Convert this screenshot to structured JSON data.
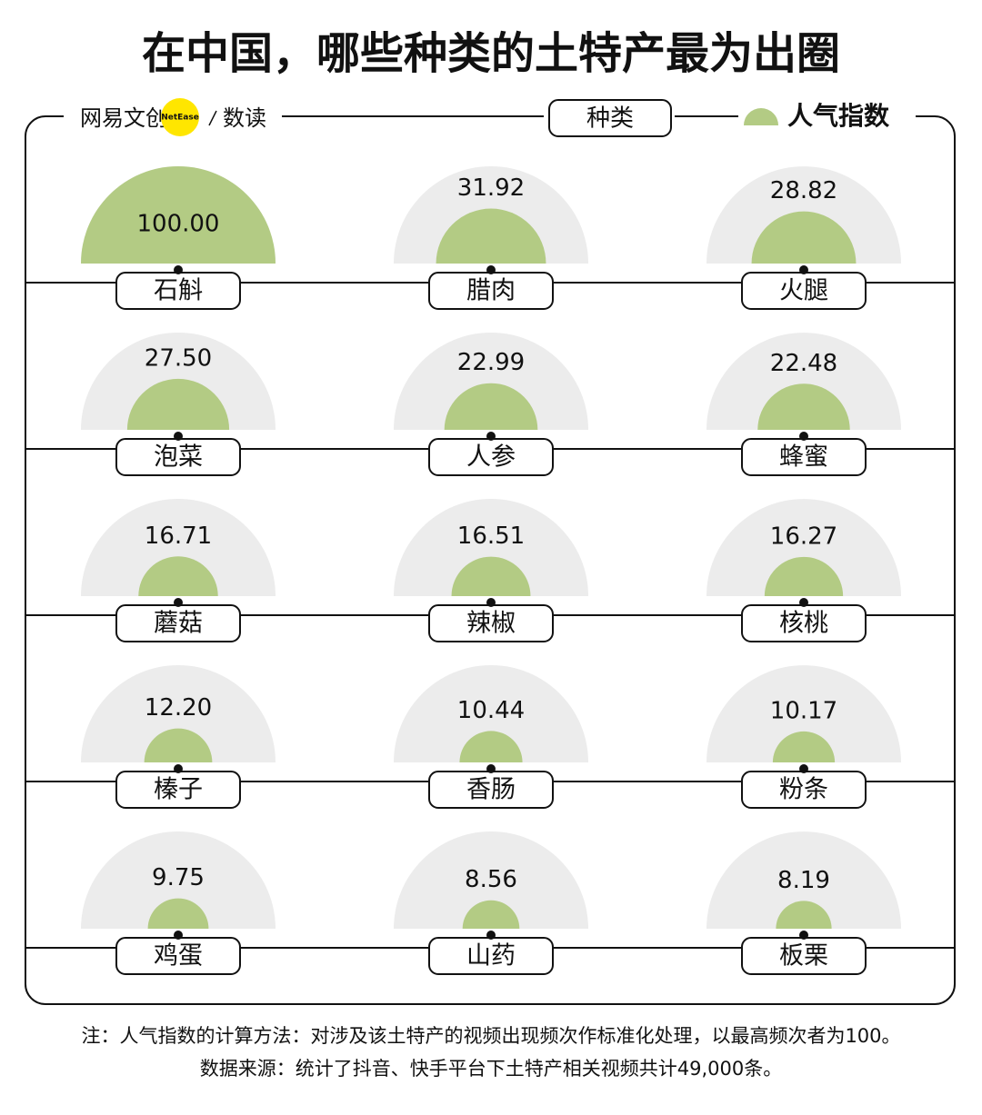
{
  "chart_data": {
    "type": "semicircle",
    "title": "在中国，哪些种类的土特产最为出圈",
    "brand": "网易文创",
    "brand_badge": "NetEase",
    "brand_sub": "数读",
    "category_legend": "种类",
    "value_legend": "人气指数",
    "categories": [
      "石斛",
      "腊肉",
      "火腿",
      "泡菜",
      "人参",
      "蜂蜜",
      "蘑菇",
      "辣椒",
      "核桃",
      "榛子",
      "香肠",
      "粉条",
      "鸡蛋",
      "山药",
      "板栗"
    ],
    "values": [
      100.0,
      31.92,
      28.82,
      27.5,
      22.99,
      22.48,
      16.71,
      16.51,
      16.27,
      12.2,
      10.44,
      10.17,
      9.75,
      8.56,
      8.19
    ],
    "value_labels": [
      "100.00",
      "31.92",
      "28.82",
      "27.50",
      "22.99",
      "22.48",
      "16.71",
      "16.51",
      "16.27",
      "12.20",
      "10.44",
      "10.17",
      "9.75",
      "8.56",
      "8.19"
    ],
    "color": "#b3cb84",
    "background_color": "#ececec",
    "notes": [
      "注：人气指数的计算方法：对涉及该土特产的视频出现频次作标准化处理，以最高频次者为100。",
      "数据来源：统计了抖音、快手平台下土特产相关视频共计49,000条。"
    ]
  }
}
